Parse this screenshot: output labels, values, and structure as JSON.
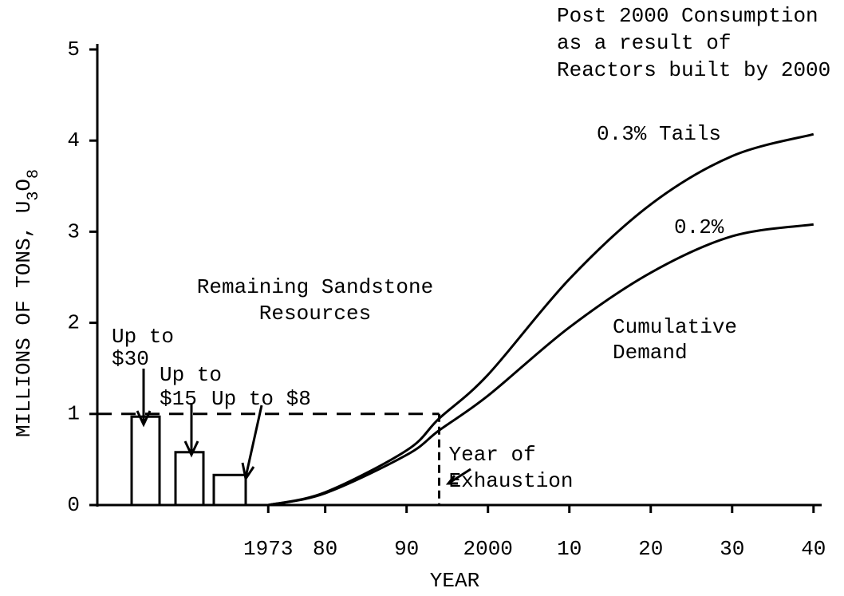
{
  "chart_data": {
    "type": "line",
    "title_lines": [
      "Post 2000 Consumption",
      "as a result of",
      "Reactors built by 2000"
    ],
    "xlabel": "YEAR",
    "ylabel_parts": [
      "MILLIONS OF TONS, U",
      "3",
      "O",
      "8"
    ],
    "xlim": [
      1952,
      2041
    ],
    "ylim": [
      0,
      5
    ],
    "xticks": [
      {
        "value": 1973,
        "label": "1973"
      },
      {
        "value": 1980,
        "label": "80"
      },
      {
        "value": 1990,
        "label": "90"
      },
      {
        "value": 2000,
        "label": "2000"
      },
      {
        "value": 2010,
        "label": "10"
      },
      {
        "value": 2020,
        "label": "20"
      },
      {
        "value": 2030,
        "label": "30"
      },
      {
        "value": 2040,
        "label": "40"
      }
    ],
    "yticks": [
      0,
      1,
      2,
      3,
      4,
      5
    ],
    "x": [
      1973,
      1980,
      1990,
      1994,
      2000,
      2010,
      2020,
      2030,
      2040
    ],
    "series": [
      {
        "name": "0.3% Tails",
        "color": "#000000",
        "values": [
          0,
          0.14,
          0.6,
          0.95,
          1.43,
          2.48,
          3.3,
          3.83,
          4.07
        ]
      },
      {
        "name": "0.2%",
        "color": "#000000",
        "values": [
          0,
          0.13,
          0.55,
          0.82,
          1.2,
          1.95,
          2.55,
          2.95,
          3.08
        ]
      }
    ],
    "demand_label_lines": [
      "Cumulative",
      "Demand"
    ],
    "resources": {
      "title_lines": [
        "Remaining Sandstone",
        "Resources"
      ],
      "bars": [
        {
          "label_lines": [
            "Up to",
            "$30"
          ],
          "value": 0.97
        },
        {
          "label_lines": [
            "Up to",
            "$15"
          ],
          "value": 0.58
        },
        {
          "label_lines": [
            "Up to $8"
          ],
          "value": 0.33
        }
      ]
    },
    "exhaustion": {
      "label_lines": [
        "Year of",
        "Exhaustion"
      ],
      "year": 1994,
      "level": 1
    }
  }
}
